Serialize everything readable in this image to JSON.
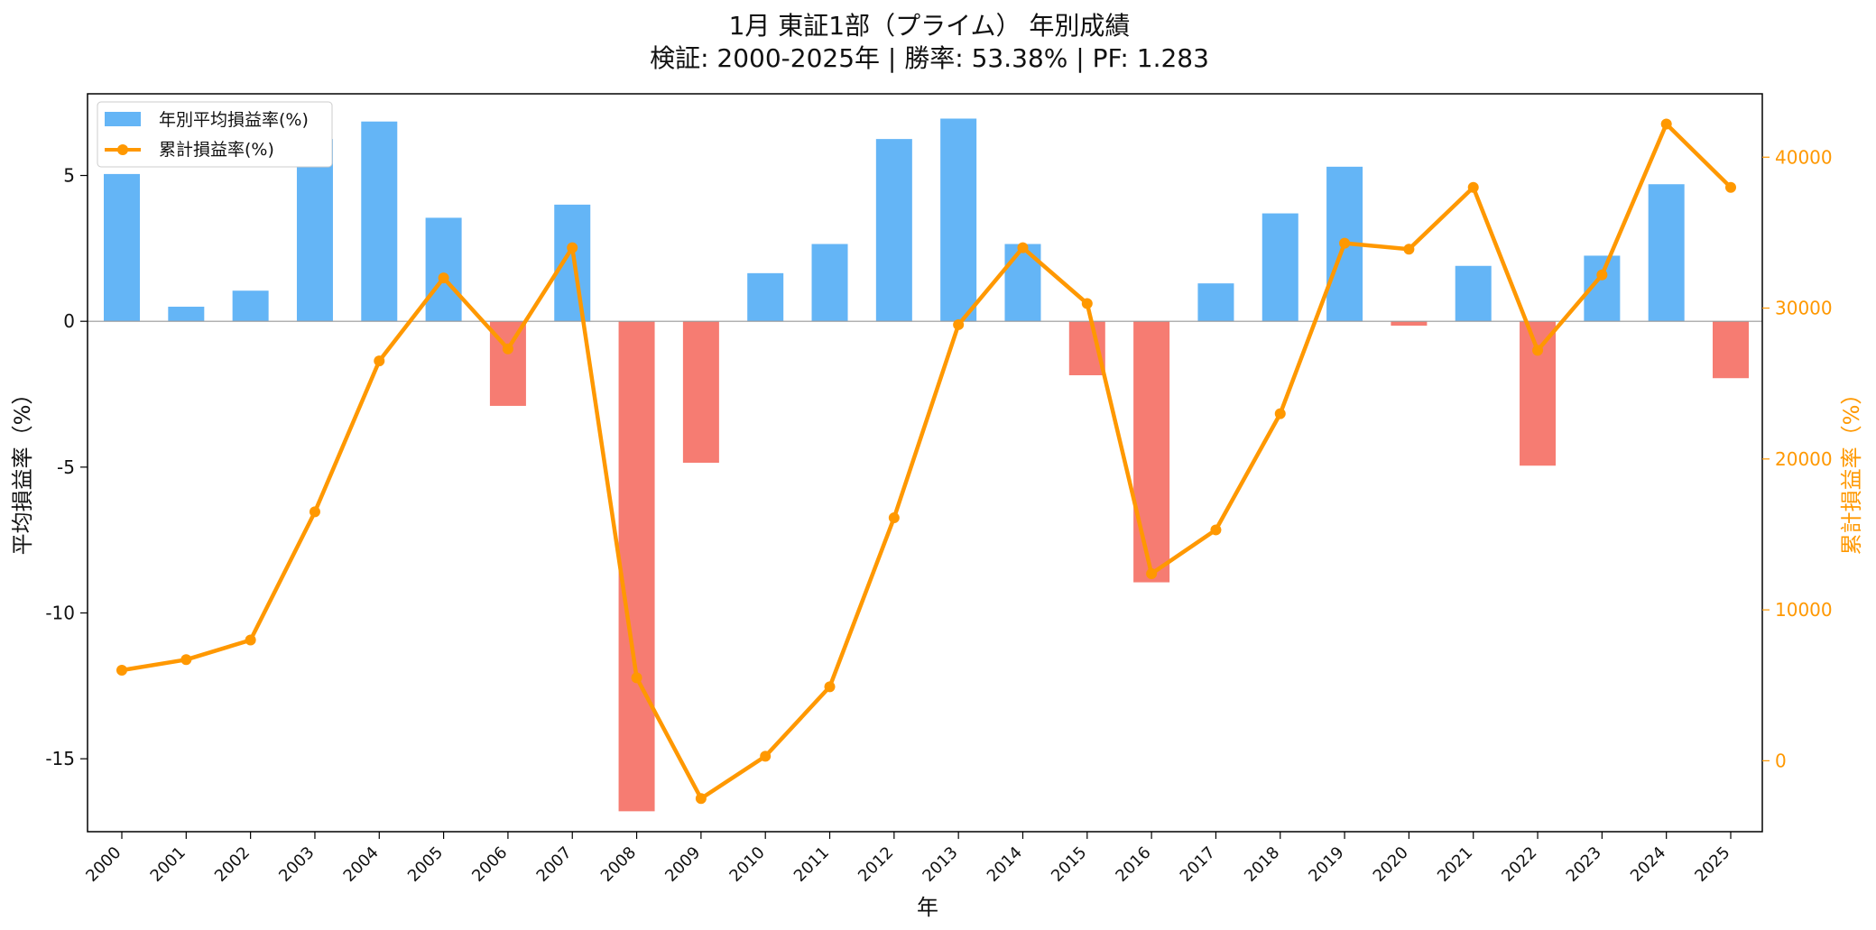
{
  "chart_data": {
    "type": "bar",
    "title": "1月 東証1部（プライム） 年別成績",
    "subtitle": "検証: 2000-2025年 | 勝率: 53.38% | PF: 1.283",
    "xlabel": "年",
    "ylabel": "平均損益率（%）",
    "y2label": "累計損益率（%）",
    "categories": [
      "2000",
      "2001",
      "2002",
      "2003",
      "2004",
      "2005",
      "2006",
      "2007",
      "2008",
      "2009",
      "2010",
      "2011",
      "2012",
      "2013",
      "2014",
      "2015",
      "2016",
      "2017",
      "2018",
      "2019",
      "2020",
      "2021",
      "2022",
      "2023",
      "2024",
      "2025"
    ],
    "ylim": [
      -17.5,
      7.8
    ],
    "y2lim": [
      -4700,
      44200
    ],
    "yticks": [
      5,
      0,
      -5,
      -10,
      -15
    ],
    "y2ticks": [
      40000,
      30000,
      20000,
      10000,
      0
    ],
    "grid": false,
    "legend_position": "top-left",
    "series": [
      {
        "name": "年別平均損益率(%)",
        "type": "bar",
        "axis": "left",
        "values": [
          5.05,
          0.5,
          1.05,
          6.25,
          6.85,
          3.55,
          -2.9,
          4.0,
          -16.8,
          -4.85,
          1.65,
          2.65,
          6.25,
          6.95,
          2.65,
          -1.85,
          -8.95,
          1.3,
          3.7,
          5.3,
          -0.15,
          1.9,
          -4.95,
          2.25,
          4.7,
          -1.95
        ],
        "positive_color": "#64b5f6",
        "negative_color": "#f67c72"
      },
      {
        "name": "累計損益率(%)",
        "type": "line",
        "axis": "right",
        "values": [
          6000,
          6700,
          8000,
          16500,
          26500,
          32000,
          27300,
          34000,
          5500,
          -2500,
          300,
          4900,
          16100,
          28900,
          34000,
          30300,
          12400,
          15300,
          23000,
          34300,
          33900,
          38000,
          27200,
          32200,
          42200,
          38000
        ],
        "color": "#ff9800"
      }
    ]
  }
}
